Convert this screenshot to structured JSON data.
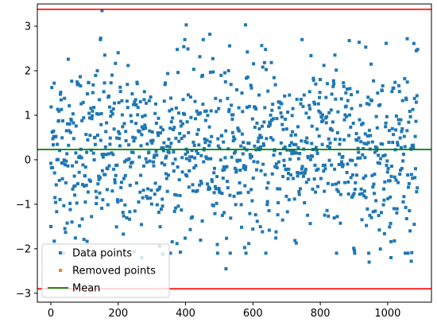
{
  "chart_data": {
    "type": "scatter",
    "title": "",
    "xlabel": "",
    "ylabel": "",
    "xlim": [
      -40,
      1130
    ],
    "ylim": [
      -3.2,
      3.5
    ],
    "x_ticks": [
      0,
      200,
      400,
      600,
      800,
      1000
    ],
    "y_ticks": [
      -3,
      -2,
      -1,
      0,
      1,
      2,
      3
    ],
    "grid": false,
    "legend_position": "lower-left",
    "mean": 0.23,
    "lower_threshold": -2.9,
    "upper_threshold": 3.38,
    "series": [
      {
        "name": "Data points",
        "color": "#1f77b4",
        "marker": "square",
        "point_count": 1090,
        "x_range": [
          0,
          1090
        ],
        "y_range": [
          -2.45,
          3.35
        ],
        "notable_points": [
          {
            "x": 152,
            "y": 3.35
          },
          {
            "x": 402,
            "y": 3.03
          },
          {
            "x": 578,
            "y": 3.03
          },
          {
            "x": 148,
            "y": 2.73
          },
          {
            "x": 472,
            "y": 2.82
          },
          {
            "x": 1058,
            "y": 2.72
          },
          {
            "x": 1085,
            "y": 2.45
          },
          {
            "x": 935,
            "y": 2.53
          },
          {
            "x": 520,
            "y": -2.45
          },
          {
            "x": 945,
            "y": -2.3
          },
          {
            "x": 1070,
            "y": -2.28
          },
          {
            "x": 270,
            "y": -2.2
          },
          {
            "x": 1010,
            "y": -2.2
          },
          {
            "x": 332,
            "y": -2.12
          },
          {
            "x": 0,
            "y": -1.5
          },
          {
            "x": 10,
            "y": 1.72
          }
        ]
      },
      {
        "name": "Removed points",
        "color": "#ff7f0e",
        "marker": "square",
        "point_count": 0
      },
      {
        "name": "Mean",
        "color": "#008000",
        "marker": "line"
      }
    ],
    "threshold_color": "#ff0000"
  }
}
